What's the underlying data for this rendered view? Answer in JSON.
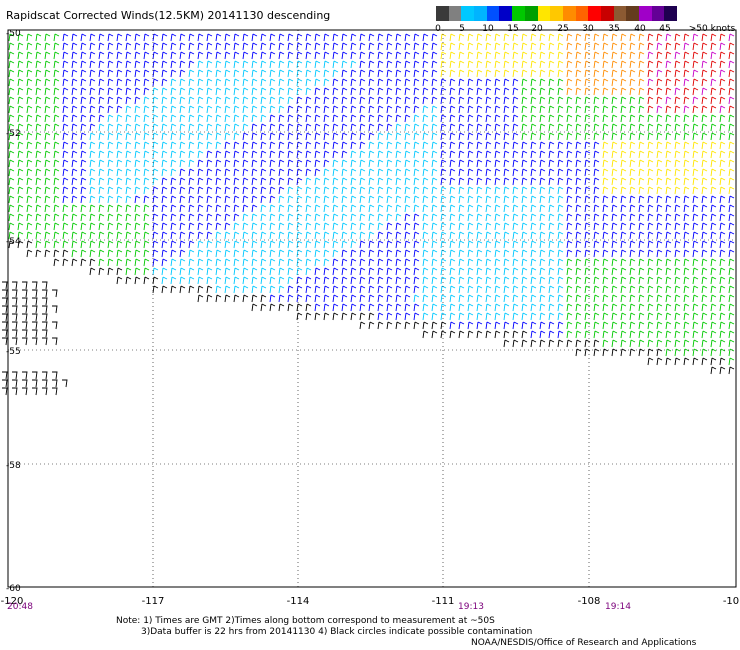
{
  "header": {
    "title": "Rapidscat Corrected Winds(12.5KM) 20141130 descending"
  },
  "legend": {
    "colors": [
      "#3a3a3a",
      "#808080",
      "#00c8ff",
      "#00b4ff",
      "#0050ff",
      "#0000c8",
      "#00c800",
      "#00a000",
      "#ffe600",
      "#ffc800",
      "#ff8c00",
      "#ff6400",
      "#ff0000",
      "#c80000",
      "#8c5a32",
      "#643c1e",
      "#a000c8",
      "#640096",
      "#1e0050"
    ],
    "labels": [
      "0",
      "5",
      "10",
      "15",
      "20",
      "25",
      "30",
      "35",
      "40",
      "45",
      ">50 knots"
    ]
  },
  "map": {
    "lon_labels": [
      "-120",
      "-117",
      "-114",
      "-111",
      "-108",
      "-10"
    ],
    "lat_labels": [
      "-50",
      "-52",
      "-54",
      "-55",
      "-58",
      "-60"
    ],
    "time_labels": [
      "20:48",
      "19:13",
      "19:14"
    ],
    "time_color": "#7b007b"
  },
  "notes": {
    "line1": "Note: 1) Times are GMT 2)Times along bottom correspond to measurement at ~50S",
    "line2": "3)Data buffer is 22 hrs from 20141130 4) Black circles indicate possible contamination",
    "line3": "NOAA/NESDIS/Office of Research and Applications"
  }
}
